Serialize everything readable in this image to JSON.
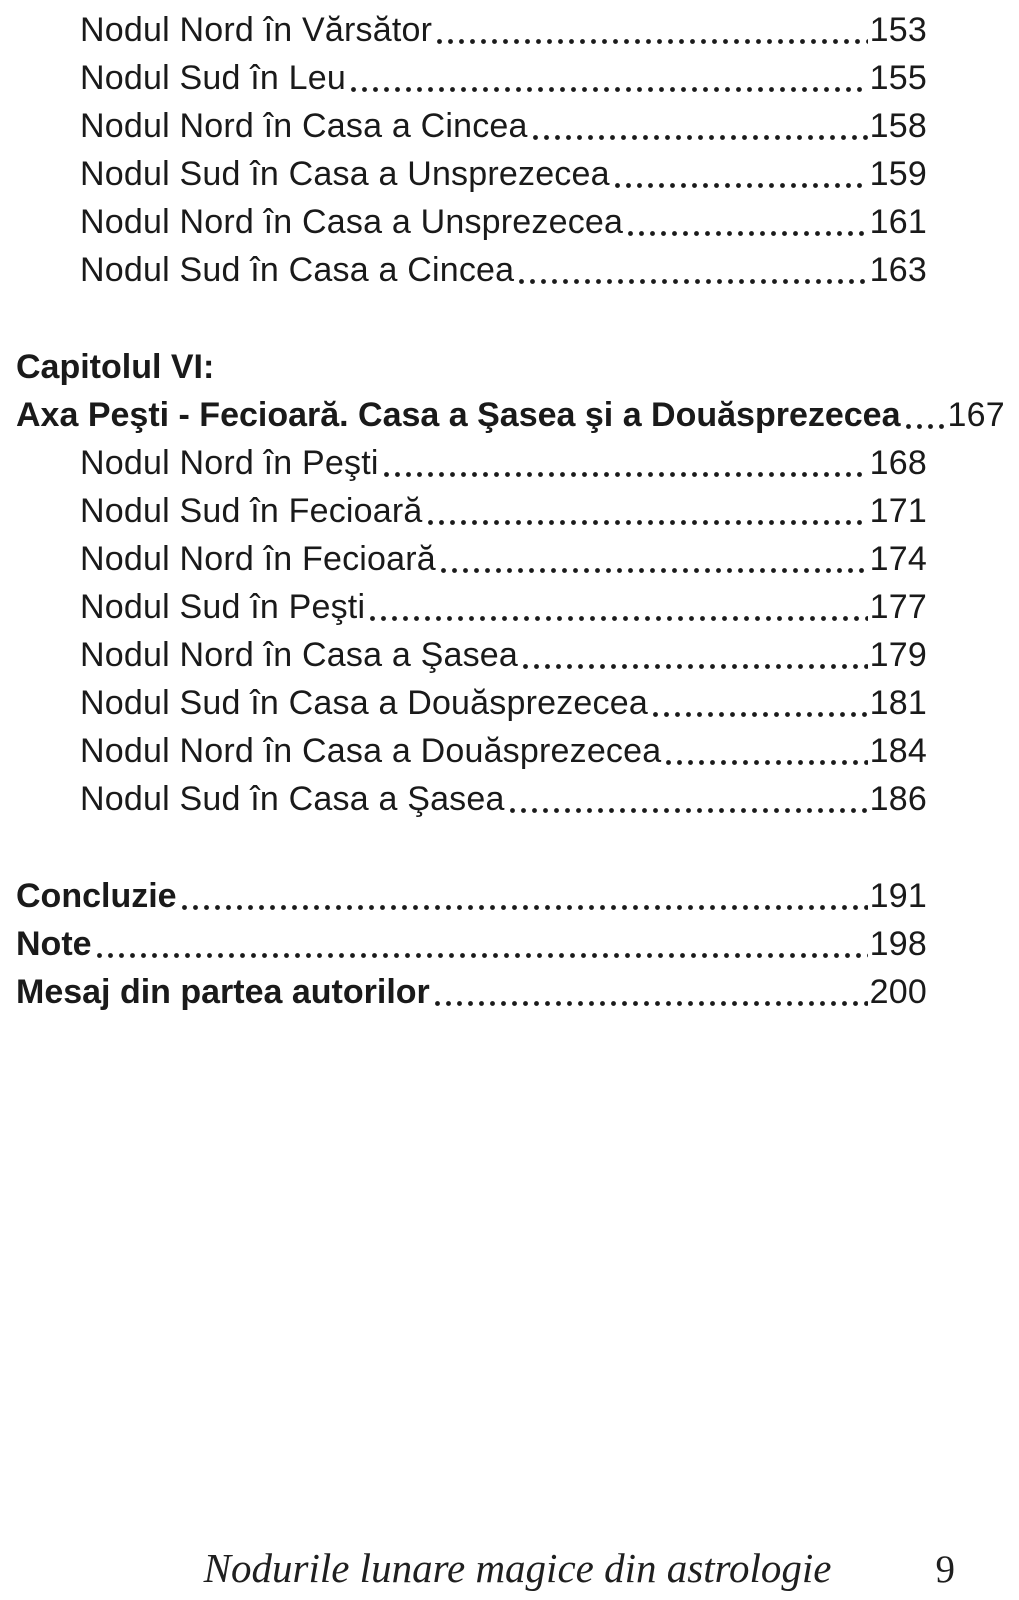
{
  "toc": {
    "entries": [
      {
        "label": "Nodul Nord în Vărsător",
        "page": "153"
      },
      {
        "label": "Nodul Sud în Leu",
        "page": "155"
      },
      {
        "label": "Nodul Nord în Casa a Cincea",
        "page": "158"
      },
      {
        "label": "Nodul Sud în Casa a Unsprezecea",
        "page": "159"
      },
      {
        "label": "Nodul Nord în Casa a Unsprezecea",
        "page": "161"
      },
      {
        "label": "Nodul Sud în Casa a Cincea",
        "page": "163"
      },
      {
        "label": "Capitolul VI:",
        "page": ""
      },
      {
        "label": "Axa Peşti - Fecioară. Casa a Şasea şi a Douăsprezecea",
        "page": "167"
      },
      {
        "label": "Nodul Nord în Peşti",
        "page": "168"
      },
      {
        "label": "Nodul Sud în Fecioară",
        "page": "171"
      },
      {
        "label": "Nodul Nord în Fecioară",
        "page": "174"
      },
      {
        "label": "Nodul Sud în Peşti",
        "page": "177"
      },
      {
        "label": "Nodul Nord în Casa a Şasea",
        "page": "179"
      },
      {
        "label": "Nodul Sud în Casa a Douăsprezecea",
        "page": "181"
      },
      {
        "label": "Nodul Nord în Casa a Douăsprezecea",
        "page": "184"
      },
      {
        "label": "Nodul Sud în Casa a Şasea",
        "page": "186"
      },
      {
        "label": "Concluzie",
        "page": "191"
      },
      {
        "label": "Note",
        "page": "198"
      },
      {
        "label": "Mesaj din partea autorilor",
        "page": "200"
      }
    ]
  },
  "footer": {
    "book_title": "Nodurile lunare magice din astrologie",
    "page_number": "9"
  },
  "colors": {
    "text": "#1a1a1a",
    "background": "#ffffff"
  }
}
